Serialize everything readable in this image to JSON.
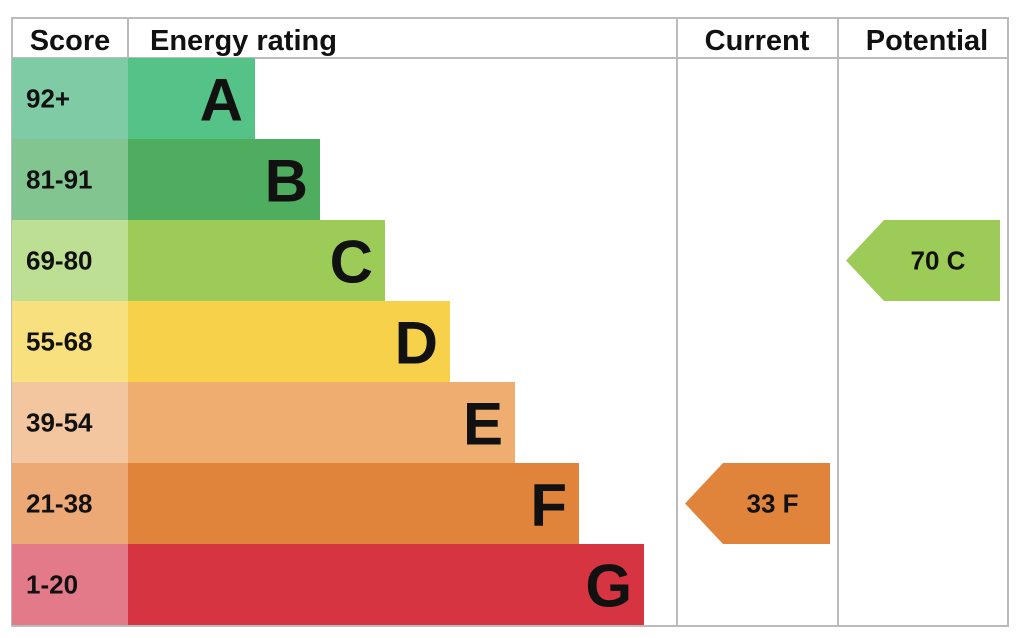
{
  "chart_data": {
    "type": "bar",
    "headers": {
      "score": "Score",
      "rating": "Energy rating",
      "current": "Current",
      "potential": "Potential"
    },
    "bands": [
      {
        "range": "92+",
        "letter": "A",
        "color": "#55c387",
        "score_bg": "#7ecba6"
      },
      {
        "range": "81-91",
        "letter": "B",
        "color": "#4fad5f",
        "score_bg": "#82c591"
      },
      {
        "range": "69-80",
        "letter": "C",
        "color": "#9dcb58",
        "score_bg": "#bddf93"
      },
      {
        "range": "55-68",
        "letter": "D",
        "color": "#f7d14a",
        "score_bg": "#f9e07f"
      },
      {
        "range": "39-54",
        "letter": "E",
        "color": "#efae6f",
        "score_bg": "#f3c69f"
      },
      {
        "range": "21-38",
        "letter": "F",
        "color": "#e1843b",
        "score_bg": "#eca875"
      },
      {
        "range": "1-20",
        "letter": "G",
        "color": "#d63441",
        "score_bg": "#e27a8a"
      }
    ],
    "current": {
      "value": 33,
      "letter": "F",
      "label": "33  F",
      "color": "#e1843b"
    },
    "potential": {
      "value": 70,
      "letter": "C",
      "label": "70  C",
      "color": "#9dcb58"
    }
  }
}
